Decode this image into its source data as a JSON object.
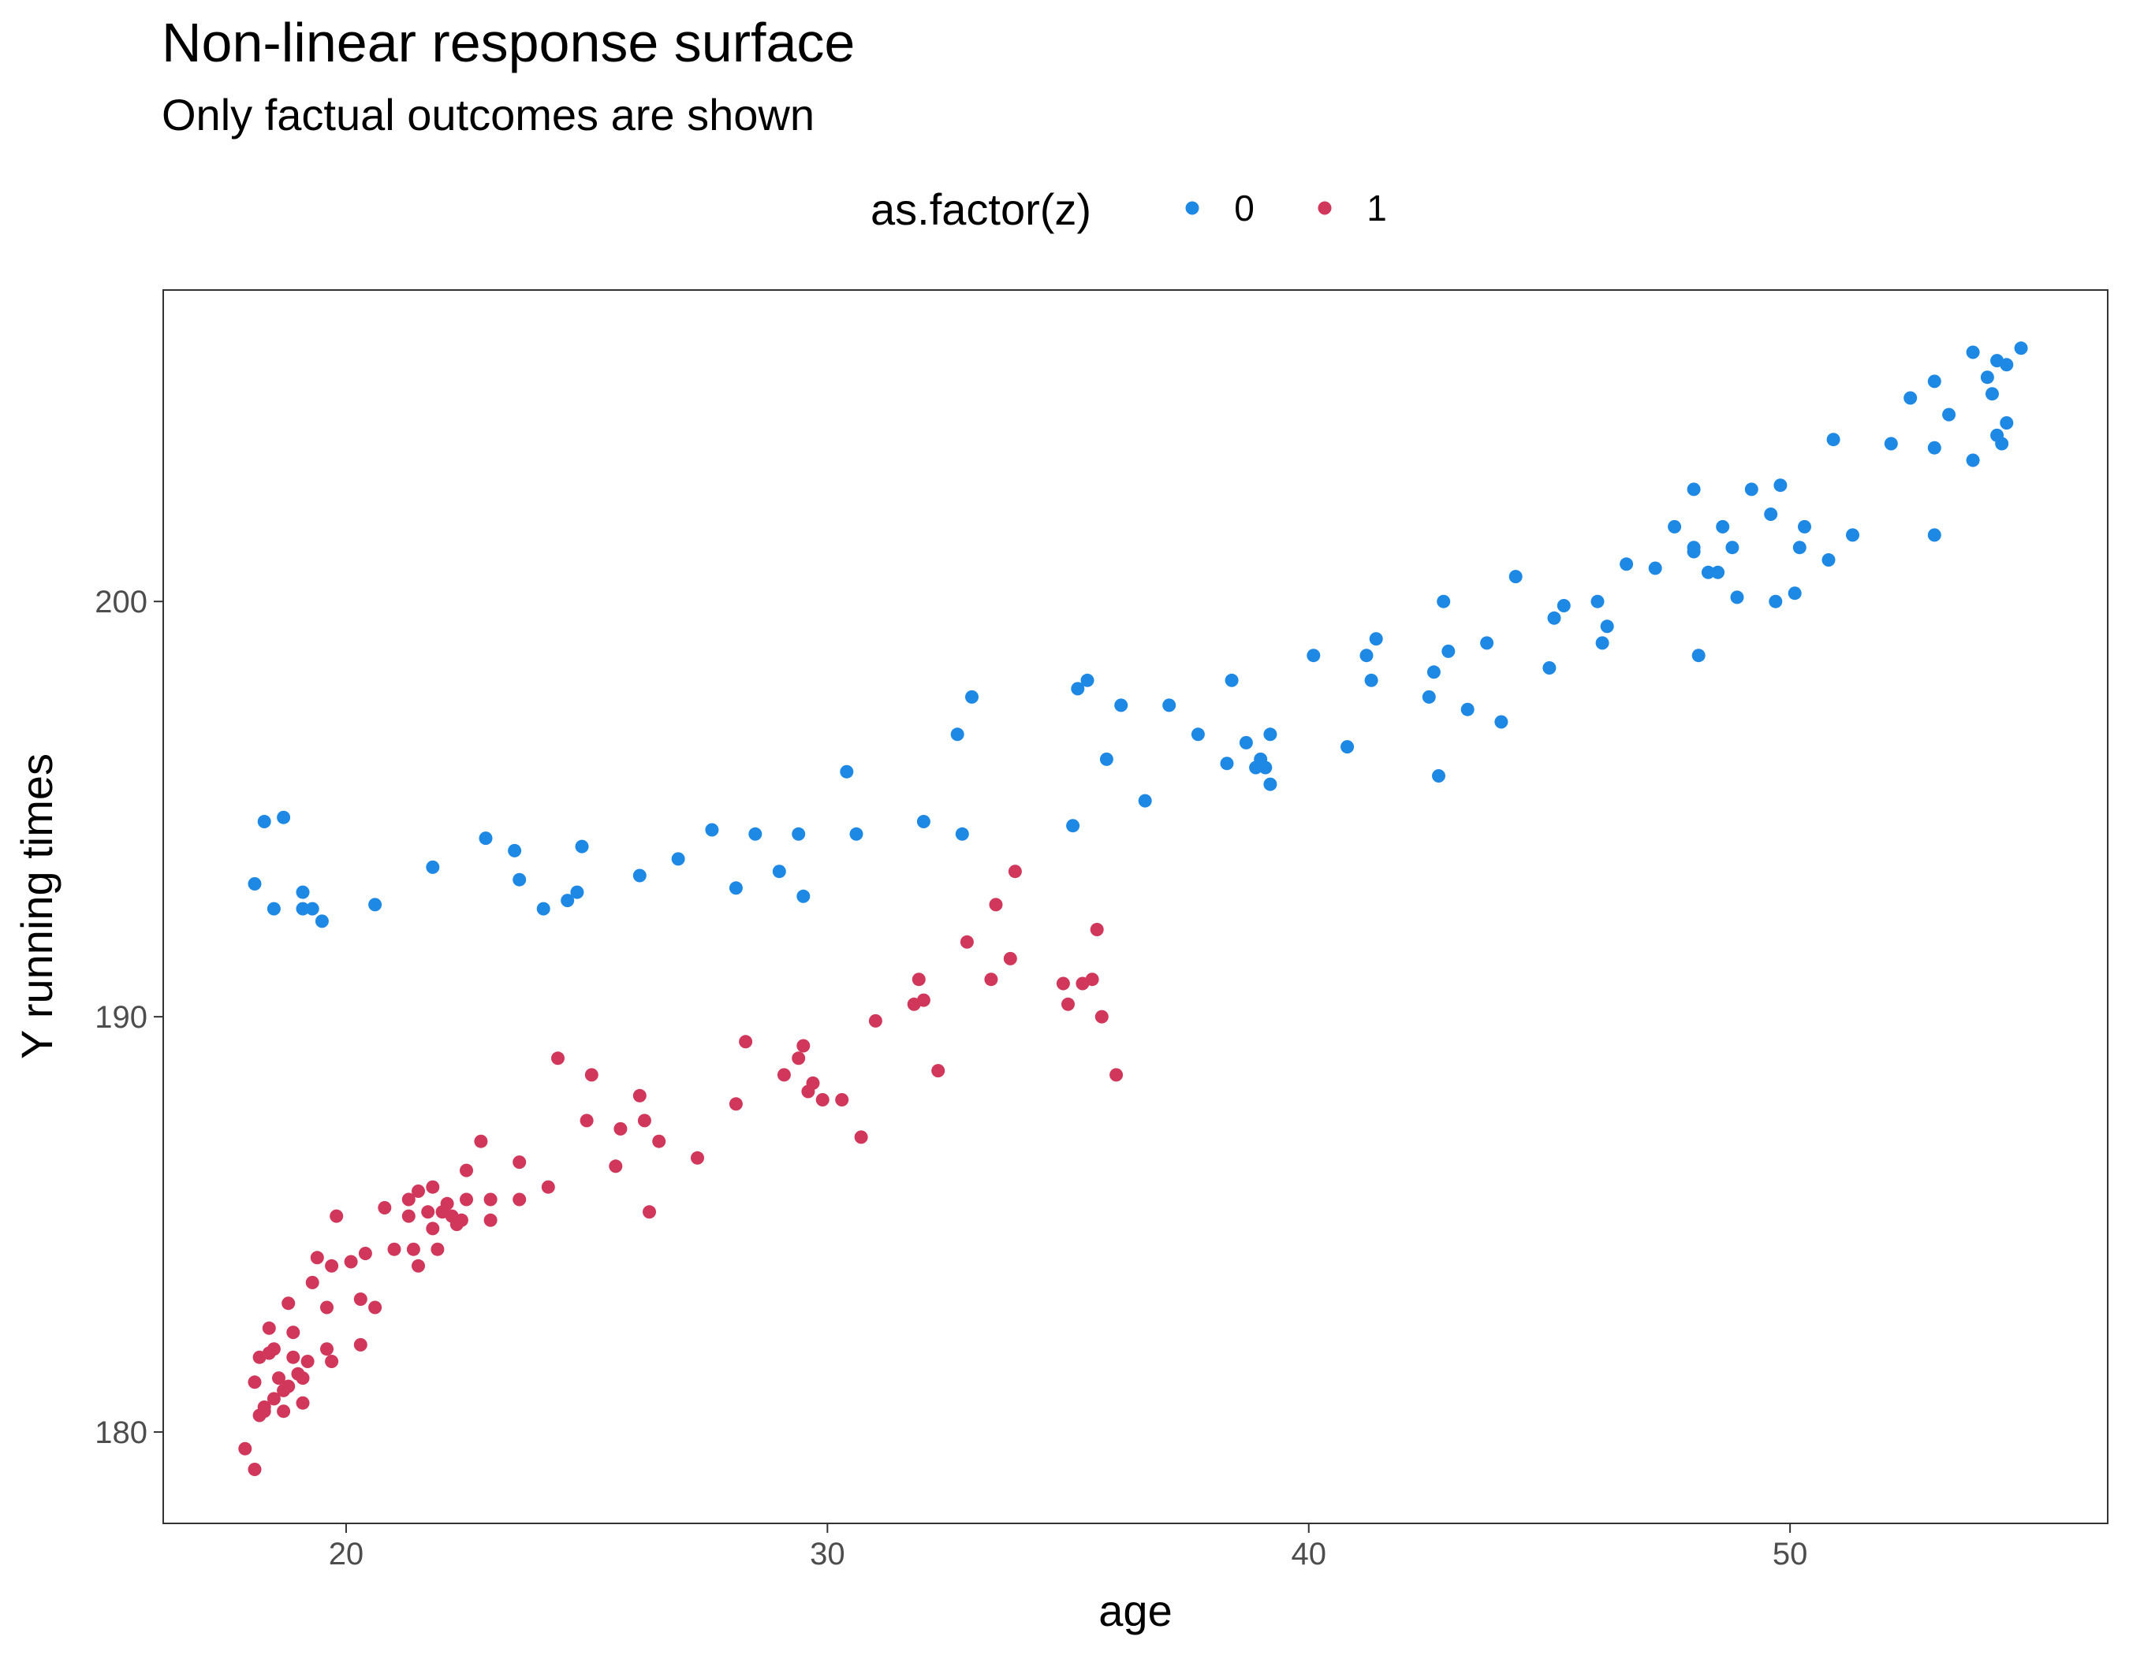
{
  "chart_data": {
    "type": "scatter",
    "title": "Non-linear response surface",
    "subtitle": "Only factual outcomes are shown",
    "xlabel": "age",
    "ylabel": "Y running times",
    "xlim": [
      16.2,
      56.6
    ],
    "ylim": [
      177.8,
      207.5
    ],
    "x_ticks": [
      20,
      30,
      40,
      50
    ],
    "y_ticks": [
      180,
      190,
      200
    ],
    "grid": false,
    "legend": {
      "title": "as.factor(z)",
      "position": "top"
    },
    "series": [
      {
        "name": "0",
        "color": "#1E88E5",
        "points": [
          [
            18.1,
            193.2
          ],
          [
            18.3,
            194.7
          ],
          [
            18.5,
            192.6
          ],
          [
            18.7,
            194.8
          ],
          [
            19.1,
            193.0
          ],
          [
            19.1,
            192.6
          ],
          [
            19.3,
            192.6
          ],
          [
            19.5,
            192.3
          ],
          [
            20.6,
            192.7
          ],
          [
            21.8,
            193.6
          ],
          [
            22.9,
            194.3
          ],
          [
            23.5,
            194.0
          ],
          [
            23.6,
            193.3
          ],
          [
            24.1,
            192.6
          ],
          [
            24.6,
            192.8
          ],
          [
            24.8,
            193.0
          ],
          [
            24.9,
            194.1
          ],
          [
            26.1,
            193.4
          ],
          [
            26.9,
            193.8
          ],
          [
            27.6,
            194.5
          ],
          [
            28.1,
            193.1
          ],
          [
            28.5,
            194.4
          ],
          [
            29.0,
            193.5
          ],
          [
            29.4,
            194.4
          ],
          [
            29.5,
            192.9
          ],
          [
            30.4,
            195.9
          ],
          [
            30.6,
            194.4
          ],
          [
            32.0,
            194.7
          ],
          [
            32.7,
            196.8
          ],
          [
            32.8,
            194.4
          ],
          [
            33.0,
            197.7
          ],
          [
            35.1,
            194.6
          ],
          [
            35.2,
            197.9
          ],
          [
            35.4,
            198.1
          ],
          [
            35.8,
            196.2
          ],
          [
            36.1,
            197.5
          ],
          [
            36.6,
            195.2
          ],
          [
            37.1,
            197.5
          ],
          [
            37.7,
            196.8
          ],
          [
            38.3,
            196.1
          ],
          [
            38.4,
            198.1
          ],
          [
            38.7,
            196.6
          ],
          [
            38.9,
            196.0
          ],
          [
            39.0,
            196.2
          ],
          [
            39.1,
            196.0
          ],
          [
            39.2,
            195.6
          ],
          [
            39.2,
            196.8
          ],
          [
            40.1,
            198.7
          ],
          [
            40.8,
            196.5
          ],
          [
            41.2,
            198.7
          ],
          [
            41.3,
            198.1
          ],
          [
            41.4,
            199.1
          ],
          [
            42.5,
            197.7
          ],
          [
            42.6,
            198.3
          ],
          [
            42.7,
            195.8
          ],
          [
            42.8,
            200.0
          ],
          [
            42.9,
            198.8
          ],
          [
            43.3,
            197.4
          ],
          [
            43.7,
            199.0
          ],
          [
            44.0,
            197.1
          ],
          [
            44.3,
            200.6
          ],
          [
            45.0,
            198.4
          ],
          [
            45.1,
            199.6
          ],
          [
            45.3,
            199.9
          ],
          [
            46.0,
            200.0
          ],
          [
            46.1,
            199.0
          ],
          [
            46.2,
            199.4
          ],
          [
            46.6,
            200.9
          ],
          [
            47.2,
            200.8
          ],
          [
            47.6,
            201.8
          ],
          [
            48.0,
            202.7
          ],
          [
            48.0,
            201.3
          ],
          [
            48.0,
            201.2
          ],
          [
            48.1,
            198.7
          ],
          [
            48.3,
            200.7
          ],
          [
            48.5,
            200.7
          ],
          [
            48.6,
            201.8
          ],
          [
            48.8,
            201.3
          ],
          [
            48.9,
            200.1
          ],
          [
            49.2,
            202.7
          ],
          [
            49.6,
            202.1
          ],
          [
            49.7,
            200.0
          ],
          [
            49.8,
            202.8
          ],
          [
            50.1,
            200.2
          ],
          [
            50.2,
            201.3
          ],
          [
            50.3,
            201.8
          ],
          [
            50.8,
            201.0
          ],
          [
            50.9,
            203.9
          ],
          [
            51.3,
            201.6
          ],
          [
            52.1,
            203.8
          ],
          [
            52.5,
            204.9
          ],
          [
            53.0,
            205.3
          ],
          [
            53.0,
            203.7
          ],
          [
            53.0,
            201.6
          ],
          [
            53.3,
            204.5
          ],
          [
            53.8,
            206.0
          ],
          [
            53.8,
            203.4
          ],
          [
            54.1,
            205.4
          ],
          [
            54.2,
            205.0
          ],
          [
            54.3,
            205.8
          ],
          [
            54.3,
            204.0
          ],
          [
            54.4,
            203.8
          ],
          [
            54.5,
            205.7
          ],
          [
            54.5,
            204.3
          ],
          [
            54.8,
            206.1
          ]
        ]
      },
      {
        "name": "1",
        "color": "#D1365B",
        "points": [
          [
            17.9,
            179.6
          ],
          [
            18.1,
            181.2
          ],
          [
            18.1,
            179.1
          ],
          [
            18.2,
            181.8
          ],
          [
            18.2,
            180.4
          ],
          [
            18.3,
            180.5
          ],
          [
            18.3,
            180.6
          ],
          [
            18.4,
            182.5
          ],
          [
            18.4,
            181.9
          ],
          [
            18.5,
            182.0
          ],
          [
            18.5,
            180.8
          ],
          [
            18.6,
            181.3
          ],
          [
            18.7,
            181.0
          ],
          [
            18.7,
            180.5
          ],
          [
            18.8,
            183.1
          ],
          [
            18.8,
            181.1
          ],
          [
            18.9,
            182.4
          ],
          [
            18.9,
            181.8
          ],
          [
            19.0,
            181.4
          ],
          [
            19.1,
            181.3
          ],
          [
            19.1,
            180.7
          ],
          [
            19.2,
            181.7
          ],
          [
            19.3,
            183.6
          ],
          [
            19.4,
            184.2
          ],
          [
            19.6,
            183.0
          ],
          [
            19.6,
            182.0
          ],
          [
            19.7,
            181.7
          ],
          [
            19.7,
            184.0
          ],
          [
            19.8,
            185.2
          ],
          [
            20.1,
            184.1
          ],
          [
            20.3,
            183.2
          ],
          [
            20.3,
            182.1
          ],
          [
            20.4,
            184.3
          ],
          [
            20.6,
            183.0
          ],
          [
            20.8,
            185.4
          ],
          [
            21.0,
            184.4
          ],
          [
            21.3,
            185.6
          ],
          [
            21.3,
            185.2
          ],
          [
            21.4,
            184.4
          ],
          [
            21.5,
            184.0
          ],
          [
            21.5,
            185.8
          ],
          [
            21.7,
            185.3
          ],
          [
            21.8,
            184.9
          ],
          [
            21.8,
            185.9
          ],
          [
            21.9,
            184.4
          ],
          [
            22.0,
            185.3
          ],
          [
            22.1,
            185.5
          ],
          [
            22.2,
            185.2
          ],
          [
            22.3,
            185.0
          ],
          [
            22.4,
            185.1
          ],
          [
            22.5,
            185.6
          ],
          [
            22.5,
            186.3
          ],
          [
            22.8,
            187.0
          ],
          [
            23.0,
            185.6
          ],
          [
            23.0,
            185.1
          ],
          [
            23.6,
            186.5
          ],
          [
            23.6,
            185.6
          ],
          [
            24.2,
            185.9
          ],
          [
            24.4,
            189.0
          ],
          [
            25.0,
            187.5
          ],
          [
            25.1,
            188.6
          ],
          [
            25.6,
            186.4
          ],
          [
            25.7,
            187.3
          ],
          [
            26.1,
            188.1
          ],
          [
            26.2,
            187.5
          ],
          [
            26.3,
            185.3
          ],
          [
            26.5,
            187.0
          ],
          [
            27.3,
            186.6
          ],
          [
            28.1,
            187.9
          ],
          [
            28.3,
            189.4
          ],
          [
            29.1,
            188.6
          ],
          [
            29.4,
            189.0
          ],
          [
            29.5,
            189.3
          ],
          [
            29.6,
            188.2
          ],
          [
            29.7,
            188.4
          ],
          [
            29.9,
            188.0
          ],
          [
            30.3,
            188.0
          ],
          [
            30.7,
            187.1
          ],
          [
            31.0,
            189.9
          ],
          [
            31.8,
            190.3
          ],
          [
            31.9,
            190.9
          ],
          [
            32.0,
            190.4
          ],
          [
            32.3,
            188.7
          ],
          [
            32.9,
            191.8
          ],
          [
            33.4,
            190.9
          ],
          [
            33.5,
            192.7
          ],
          [
            33.8,
            191.4
          ],
          [
            33.9,
            193.5
          ],
          [
            34.9,
            190.8
          ],
          [
            35.0,
            190.3
          ],
          [
            35.3,
            190.8
          ],
          [
            35.5,
            190.9
          ],
          [
            35.6,
            192.1
          ],
          [
            35.7,
            190.0
          ],
          [
            36.0,
            188.6
          ]
        ]
      }
    ]
  }
}
